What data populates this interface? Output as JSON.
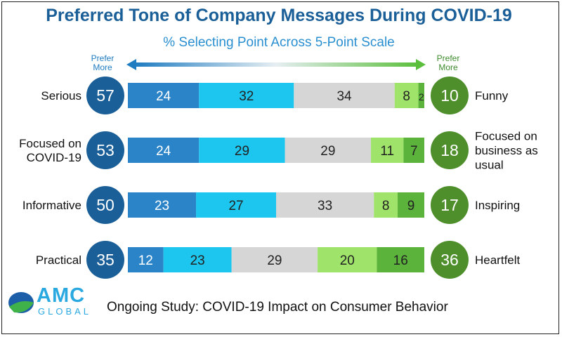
{
  "chart_data": {
    "type": "bar",
    "stacked": true,
    "orientation": "horizontal",
    "title": "Preferred Tone of Company Messages During COVID-19",
    "subtitle": "% Selecting Point Across 5-Point Scale",
    "left_axis_label": "Prefer More",
    "right_axis_label": "Prefer More",
    "rows": [
      {
        "left_label": [
          "Serious"
        ],
        "left_total": 57,
        "values": [
          24,
          32,
          34,
          8,
          2
        ],
        "right_total": 10,
        "right_label": [
          "Funny"
        ]
      },
      {
        "left_label": [
          "Focused on",
          "COVID-19"
        ],
        "left_total": 53,
        "values": [
          24,
          29,
          29,
          11,
          7
        ],
        "right_total": 18,
        "right_label": [
          "Focused on",
          "business as",
          "usual"
        ]
      },
      {
        "left_label": [
          "Informative"
        ],
        "left_total": 50,
        "values": [
          23,
          27,
          33,
          8,
          9
        ],
        "right_total": 17,
        "right_label": [
          "Inspiring"
        ]
      },
      {
        "left_label": [
          "Practical"
        ],
        "left_total": 35,
        "values": [
          12,
          23,
          29,
          20,
          16
        ],
        "right_total": 36,
        "right_label": [
          "Heartfelt"
        ]
      }
    ],
    "segment_colors": [
      "#2b84c8",
      "#1dc6ee",
      "#d6d6d6",
      "#9fe36a",
      "#5bb33c"
    ],
    "left_circle_color": "#1b5f98",
    "right_circle_color": "#4e8f2c"
  },
  "footer": "Ongoing Study: COVID-19 Impact on Consumer Behavior",
  "logo": {
    "main": "AMC",
    "sub": "GLOBAL"
  }
}
